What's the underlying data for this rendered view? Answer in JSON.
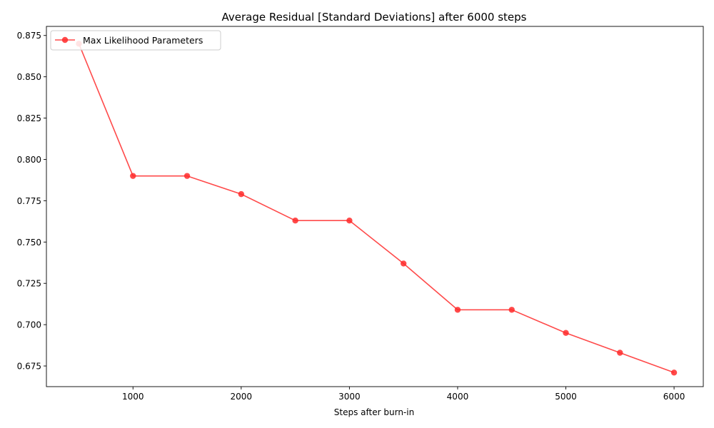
{
  "chart_data": {
    "type": "line",
    "title": "Average Residual [Standard Deviations] after 6000 steps",
    "xlabel": "Steps after burn-in",
    "ylabel": "",
    "xlim": [
      200,
      6270
    ],
    "ylim": [
      0.6625,
      0.8805
    ],
    "xticks": [
      1000,
      2000,
      3000,
      4000,
      5000,
      6000
    ],
    "yticks": [
      0.675,
      0.7,
      0.725,
      0.75,
      0.775,
      0.8,
      0.825,
      0.85,
      0.875
    ],
    "grid": false,
    "legend_position": "top-left",
    "series": [
      {
        "name": "Max Likelihood Parameters",
        "color": "#ff2a2a",
        "marker": "circle",
        "x": [
          500,
          1000,
          1500,
          2000,
          2500,
          3000,
          3500,
          4000,
          4500,
          5000,
          5500,
          6000
        ],
        "y": [
          0.87,
          0.79,
          0.79,
          0.779,
          0.763,
          0.763,
          0.737,
          0.709,
          0.709,
          0.695,
          0.683,
          0.671
        ]
      }
    ]
  }
}
